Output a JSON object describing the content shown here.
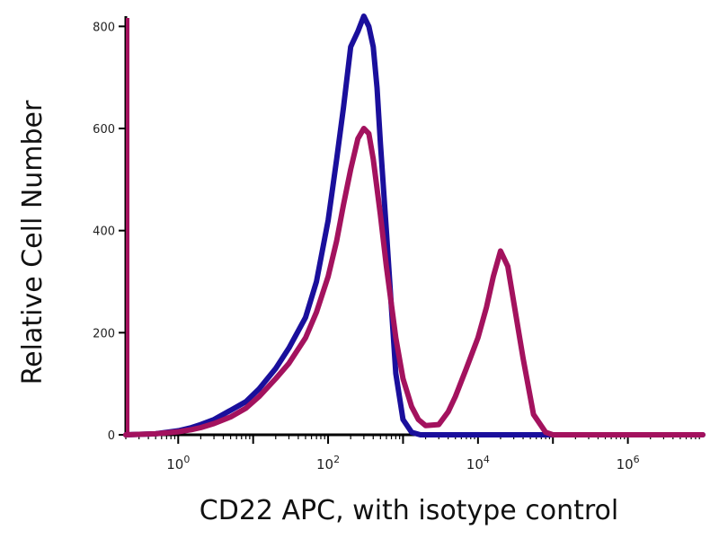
{
  "chart_data": {
    "type": "line",
    "title": "",
    "xlabel": "CD22 APC, with isotype control",
    "ylabel": "Relative Cell Number",
    "x_scale": "log",
    "xlim": [
      0.2,
      10000000
    ],
    "ylim": [
      0,
      820
    ],
    "y_ticks": [
      {
        "value": 0,
        "label": "0"
      },
      {
        "value": 200,
        "label": "200"
      },
      {
        "value": 400,
        "label": "400"
      },
      {
        "value": 600,
        "label": "600"
      },
      {
        "value": 800,
        "label": "800"
      }
    ],
    "x_ticks": [
      {
        "value": 1,
        "base": "10",
        "exp": "0"
      },
      {
        "value": 100,
        "base": "10",
        "exp": "2"
      },
      {
        "value": 10000,
        "base": "10",
        "exp": "4"
      },
      {
        "value": 1000000,
        "base": "10",
        "exp": "6"
      }
    ],
    "grid": false,
    "series": [
      {
        "color": "#1a0f9c",
        "x": [
          0.2,
          0.5,
          1,
          1.5,
          2,
          3,
          5,
          8,
          12,
          20,
          30,
          50,
          70,
          100,
          130,
          160,
          200,
          250,
          300,
          350,
          400,
          450,
          500,
          600,
          700,
          800,
          1000,
          1300,
          1700,
          2500,
          5000,
          10000,
          100000,
          10000000
        ],
        "y": [
          0,
          2,
          8,
          14,
          20,
          30,
          48,
          65,
          90,
          130,
          170,
          230,
          300,
          420,
          540,
          640,
          760,
          790,
          820,
          800,
          760,
          680,
          570,
          400,
          250,
          120,
          30,
          5,
          0,
          0,
          0,
          0,
          0,
          0
        ]
      },
      {
        "color": "#a3125e",
        "x": [
          0.2,
          0.5,
          1,
          1.5,
          2,
          3,
          5,
          8,
          12,
          20,
          30,
          50,
          70,
          100,
          130,
          160,
          200,
          250,
          300,
          350,
          400,
          500,
          600,
          800,
          1000,
          1300,
          1600,
          2000,
          3000,
          4000,
          5000,
          7000,
          10000,
          13000,
          16000,
          20000,
          25000,
          30000,
          40000,
          55000,
          80000,
          100000,
          10000000
        ],
        "y": [
          0,
          2,
          6,
          10,
          14,
          22,
          35,
          52,
          75,
          110,
          140,
          190,
          240,
          310,
          380,
          450,
          520,
          580,
          600,
          590,
          540,
          430,
          330,
          190,
          110,
          55,
          30,
          18,
          20,
          45,
          75,
          130,
          190,
          250,
          310,
          360,
          330,
          260,
          150,
          40,
          5,
          0,
          0
        ]
      }
    ]
  }
}
